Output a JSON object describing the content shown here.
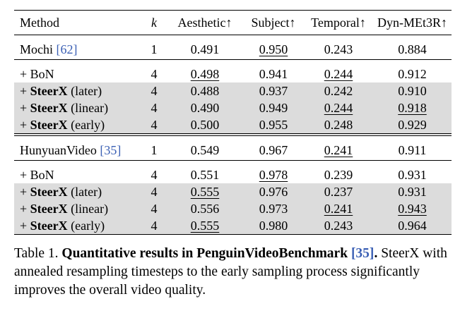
{
  "headers": {
    "method": "Method",
    "k": "k",
    "aesthetic": "Aesthetic↑",
    "subject": "Subject↑",
    "temporal": "Temporal↑",
    "dyn": "Dyn-MEt3R↑"
  },
  "groups": [
    {
      "base": {
        "name": "Mochi ",
        "cite": "[62]",
        "k": "1",
        "aesthetic": "0.491",
        "subject": "0.950",
        "temporal": "0.243",
        "dyn": "0.884"
      },
      "rows": [
        {
          "prefix": "+ ",
          "name": "BoN",
          "suffix": "",
          "k": "4",
          "aesthetic": "0.498",
          "subject": "0.941",
          "temporal": "0.244",
          "dyn": "0.912"
        },
        {
          "prefix": "+ ",
          "name": "SteerX",
          "suffix": " (later)",
          "k": "4",
          "aesthetic": "0.488",
          "subject": "0.937",
          "temporal": "0.242",
          "dyn": "0.910"
        },
        {
          "prefix": "+ ",
          "name": "SteerX",
          "suffix": " (linear)",
          "k": "4",
          "aesthetic": "0.490",
          "subject": "0.949",
          "temporal": "0.244",
          "dyn": "0.918"
        },
        {
          "prefix": "+ ",
          "name": "SteerX",
          "suffix": " (early)",
          "k": "4",
          "aesthetic": "0.500",
          "subject": "0.955",
          "temporal": "0.248",
          "dyn": "0.929"
        }
      ]
    },
    {
      "base": {
        "name": "HunyuanVideo ",
        "cite": "[35]",
        "k": "1",
        "aesthetic": "0.549",
        "subject": "0.967",
        "temporal": "0.241",
        "dyn": "0.911"
      },
      "rows": [
        {
          "prefix": "+ ",
          "name": "BoN",
          "suffix": "",
          "k": "4",
          "aesthetic": "0.551",
          "subject": "0.978",
          "temporal": "0.239",
          "dyn": "0.931"
        },
        {
          "prefix": "+ ",
          "name": "SteerX",
          "suffix": " (later)",
          "k": "4",
          "aesthetic": "0.555",
          "subject": "0.976",
          "temporal": "0.237",
          "dyn": "0.931"
        },
        {
          "prefix": "+ ",
          "name": "SteerX",
          "suffix": " (linear)",
          "k": "4",
          "aesthetic": "0.556",
          "subject": "0.973",
          "temporal": "0.241",
          "dyn": "0.943"
        },
        {
          "prefix": "+ ",
          "name": "SteerX",
          "suffix": " (early)",
          "k": "4",
          "aesthetic": "0.555",
          "subject": "0.980",
          "temporal": "0.243",
          "dyn": "0.964"
        }
      ]
    }
  ],
  "caption": {
    "label": "Table 1. ",
    "title": "Quantitative results in PenguinVideoBenchmark ",
    "cite": "[35]",
    "title_end": ".",
    "body": " SteerX with annealed resampling timesteps to the early sampling process significantly improves the overall video quality."
  }
}
